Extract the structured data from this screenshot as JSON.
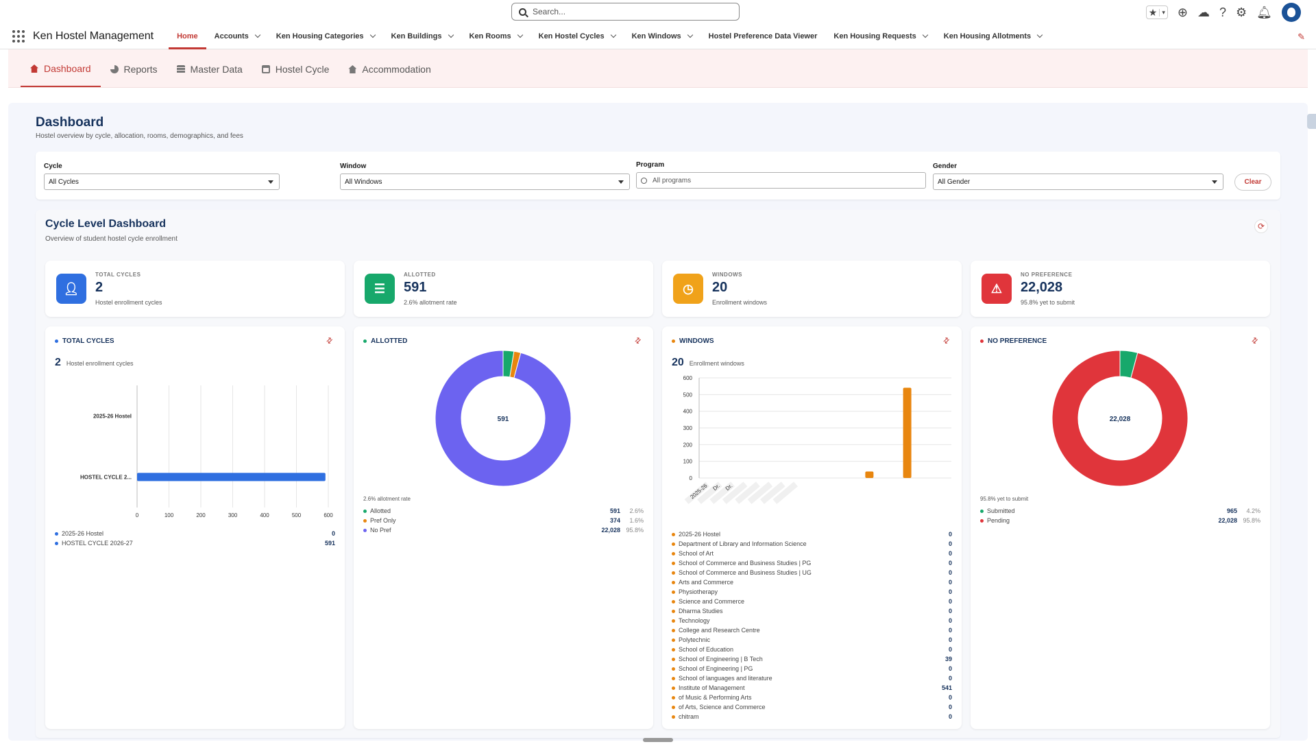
{
  "search": {
    "placeholder": "Search..."
  },
  "app": {
    "name": "Ken Hostel Management"
  },
  "nav": [
    {
      "label": "Home",
      "active": true,
      "dropdown": false
    },
    {
      "label": "Accounts",
      "dropdown": true
    },
    {
      "label": "Ken Housing Categories",
      "dropdown": true
    },
    {
      "label": "Ken Buildings",
      "dropdown": true
    },
    {
      "label": "Ken Rooms",
      "dropdown": true
    },
    {
      "label": "Ken Hostel Cycles",
      "dropdown": true
    },
    {
      "label": "Ken Windows",
      "dropdown": true
    },
    {
      "label": "Hostel Preference Data Viewer",
      "dropdown": false
    },
    {
      "label": "Ken Housing Requests",
      "dropdown": true
    },
    {
      "label": "Ken Housing Allotments",
      "dropdown": true
    }
  ],
  "subtabs": [
    {
      "label": "Dashboard",
      "icon": "home-icon",
      "active": true
    },
    {
      "label": "Reports",
      "icon": "pie-icon"
    },
    {
      "label": "Master Data",
      "icon": "database-icon"
    },
    {
      "label": "Hostel Cycle",
      "icon": "calendar-icon"
    },
    {
      "label": "Accommodation",
      "icon": "home-icon"
    }
  ],
  "dashboard": {
    "title": "Dashboard",
    "subtitle": "Hostel overview by cycle, allocation, rooms, demographics, and fees"
  },
  "filters": {
    "cycle": {
      "label": "Cycle",
      "value": "All Cycles"
    },
    "window": {
      "label": "Window",
      "value": "All Windows"
    },
    "program": {
      "label": "Program",
      "placeholder": "All programs"
    },
    "gender": {
      "label": "Gender",
      "value": "All Gender"
    },
    "clear": "Clear"
  },
  "panel": {
    "title": "Cycle Level Dashboard",
    "subtitle": "Overview of student hostel cycle enrollment"
  },
  "kpis": [
    {
      "label": "TOTAL CYCLES",
      "value": "2",
      "sub": "Hostel enrollment cycles",
      "color": "#2f6fe0",
      "icon": "users-icon"
    },
    {
      "label": "ALLOTTED",
      "value": "591",
      "sub": "2.6% allotment rate",
      "color": "#17a86b",
      "icon": "checklist-icon"
    },
    {
      "label": "WINDOWS",
      "value": "20",
      "sub": "Enrollment windows",
      "color": "#f0a21a",
      "icon": "clock-icon"
    },
    {
      "label": "NO PREFERENCE",
      "value": "22,028",
      "sub": "95.8% yet to submit",
      "color": "#e0353b",
      "icon": "warning-icon"
    }
  ],
  "cards": {
    "cycles": {
      "title": "TOTAL CYCLES",
      "value": "2",
      "sub": "Hostel enrollment cycles",
      "dot": "#2f6fe0",
      "legend": [
        {
          "name": "2025-26 Hostel",
          "value": "0"
        },
        {
          "name": "HOSTEL CYCLE 2026-27",
          "value": "591"
        }
      ]
    },
    "allotted": {
      "title": "ALLOTTED",
      "center": "591",
      "note": "2.6% allotment rate",
      "dot": "#17a86b",
      "legend": [
        {
          "name": "Allotted",
          "value": "591",
          "pct": "2.6%",
          "color": "#17a86b"
        },
        {
          "name": "Pref Only",
          "value": "374",
          "pct": "1.6%",
          "color": "#e8860f"
        },
        {
          "name": "No Pref",
          "value": "22,028",
          "pct": "95.8%",
          "color": "#6c63f0"
        }
      ]
    },
    "windows": {
      "title": "WINDOWS",
      "value": "20",
      "sub": "Enrollment windows",
      "dot": "#e8860f",
      "legend": [
        {
          "name": "2025-26 Hostel",
          "value": "0"
        },
        {
          "name": "Department of Library and Information Science",
          "value": "0"
        },
        {
          "name": "School of Art",
          "value": "0"
        },
        {
          "name": "School of Commerce and Business Studies | PG",
          "value": "0"
        },
        {
          "name": "School of Commerce and Business Studies | UG",
          "value": "0"
        },
        {
          "name": "Arts and Commerce",
          "value": "0"
        },
        {
          "name": "Physiotherapy",
          "value": "0"
        },
        {
          "name": "Science and Commerce",
          "value": "0"
        },
        {
          "name": "Dharma Studies",
          "value": "0"
        },
        {
          "name": "Technology",
          "value": "0"
        },
        {
          "name": "College and Research Centre",
          "value": "0"
        },
        {
          "name": "Polytechnic",
          "value": "0"
        },
        {
          "name": "School of Education",
          "value": "0"
        },
        {
          "name": "School of Engineering | B Tech",
          "value": "39"
        },
        {
          "name": "School of Engineering | PG",
          "value": "0"
        },
        {
          "name": "School of languages and literature",
          "value": "0"
        },
        {
          "name": "Institute of Management",
          "value": "541"
        },
        {
          "name": "of Music & Performing Arts",
          "value": "0"
        },
        {
          "name": "of Arts, Science and Commerce",
          "value": "0"
        },
        {
          "name": "chitram",
          "value": "0"
        }
      ]
    },
    "nopref": {
      "title": "NO PREFERENCE",
      "center": "22,028",
      "note": "95.8% yet to submit",
      "dot": "#e0353b",
      "legend": [
        {
          "name": "Submitted",
          "value": "965",
          "pct": "4.2%",
          "color": "#17a86b"
        },
        {
          "name": "Pending",
          "value": "22,028",
          "pct": "95.8%",
          "color": "#e0353b"
        }
      ]
    }
  },
  "chart_data": [
    {
      "type": "bar",
      "orientation": "horizontal",
      "categories": [
        "2025-26 Hostel",
        "HOSTEL CYCLE 2..."
      ],
      "values": [
        0,
        591
      ],
      "xlim": [
        0,
        600
      ],
      "xticks": [
        "0",
        "100",
        "200",
        "300",
        "400",
        "500",
        "600"
      ],
      "color": "#2f6fe0"
    },
    {
      "type": "pie",
      "donut": true,
      "labels": [
        "Allotted",
        "Pref Only",
        "No Pref"
      ],
      "values": [
        591,
        374,
        22028
      ],
      "colors": [
        "#17a86b",
        "#e8860f",
        "#6c63f0"
      ]
    },
    {
      "type": "bar",
      "categories": [
        "2025-26",
        "Dr.",
        "Dr.",
        "",
        "",
        "",
        "",
        "",
        "",
        "",
        "",
        "",
        "",
        "",
        "",
        "",
        "",
        "",
        "",
        ""
      ],
      "values": [
        0,
        0,
        0,
        0,
        0,
        0,
        0,
        0,
        0,
        0,
        0,
        0,
        0,
        39,
        0,
        0,
        541,
        0,
        0,
        0
      ],
      "ylim": [
        0,
        600
      ],
      "yticks": [
        "0",
        "100",
        "200",
        "300",
        "400",
        "500",
        "600"
      ],
      "color": "#e8860f"
    },
    {
      "type": "pie",
      "donut": true,
      "labels": [
        "Submitted",
        "Pending"
      ],
      "values": [
        965,
        22028
      ],
      "colors": [
        "#17a86b",
        "#e0353b"
      ]
    }
  ]
}
